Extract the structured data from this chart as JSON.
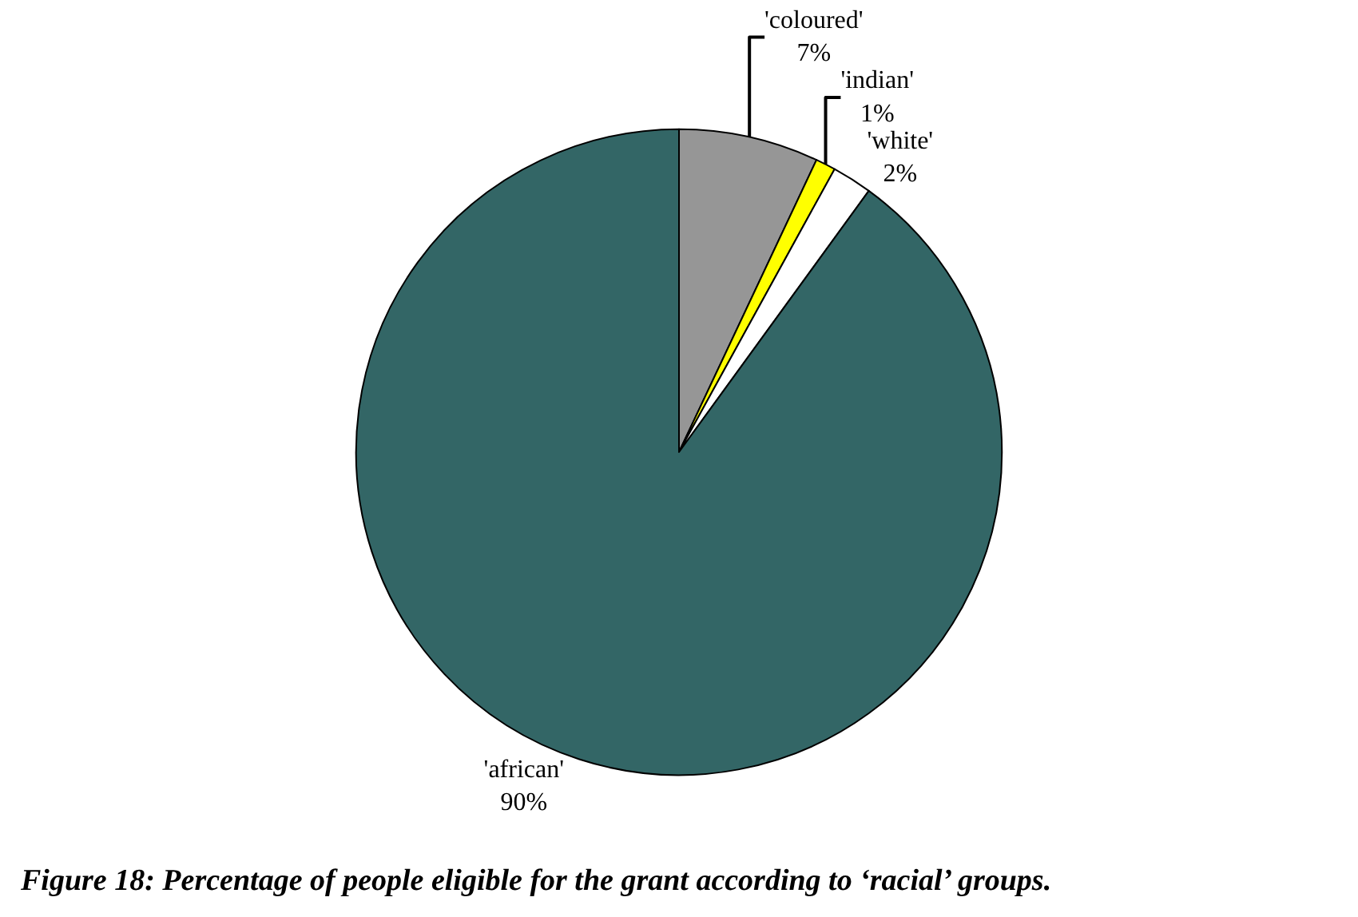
{
  "chart_data": {
    "type": "pie",
    "categories": [
      "'coloured'",
      "'indian'",
      "'white'",
      "'african'"
    ],
    "values": [
      7,
      1,
      2,
      90
    ],
    "value_labels": [
      "7%",
      "1%",
      "2%",
      "90%"
    ],
    "colors": [
      "#969696",
      "#ffff00",
      "#ffffff",
      "#336666"
    ],
    "legend": false,
    "annotations": [
      "Figure 18: Percentage of people eligible for the grant according to ‘racial’ groups."
    ]
  }
}
